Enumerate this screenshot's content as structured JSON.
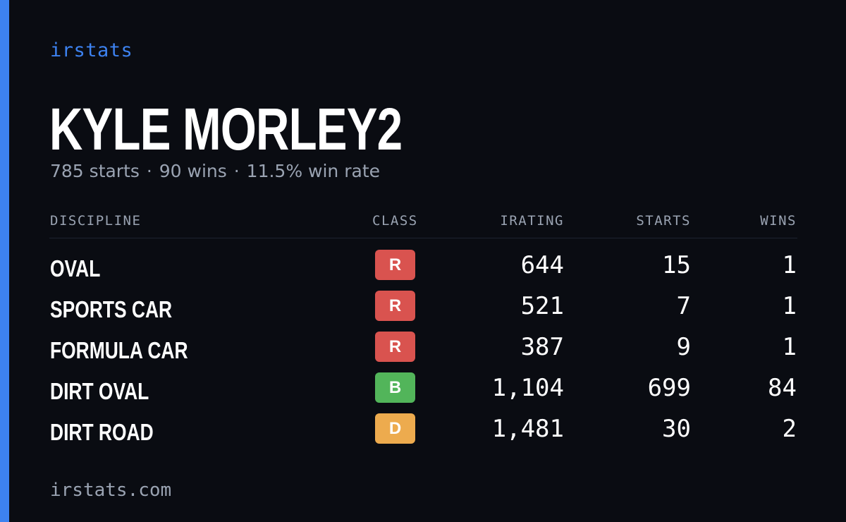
{
  "brand": "irstats",
  "driver_name": "KYLE MORLEY2",
  "summary": {
    "starts": "785 starts",
    "wins": "90 wins",
    "win_rate": "11.5% win rate",
    "separator": "·"
  },
  "colors": {
    "accent": "#3d82f0",
    "background": "#0a0c12",
    "class_R": "#d9534f",
    "class_B": "#52b55a",
    "class_D": "#edab4e"
  },
  "table": {
    "headers": {
      "discipline": "DISCIPLINE",
      "class": "CLASS",
      "irating": "IRATING",
      "starts": "STARTS",
      "wins": "WINS"
    },
    "rows": [
      {
        "discipline": "OVAL",
        "class": "R",
        "irating": "644",
        "starts": "15",
        "wins": "1"
      },
      {
        "discipline": "SPORTS CAR",
        "class": "R",
        "irating": "521",
        "starts": "7",
        "wins": "1"
      },
      {
        "discipline": "FORMULA CAR",
        "class": "R",
        "irating": "387",
        "starts": "9",
        "wins": "1"
      },
      {
        "discipline": "DIRT OVAL",
        "class": "B",
        "irating": "1,104",
        "starts": "699",
        "wins": "84"
      },
      {
        "discipline": "DIRT ROAD",
        "class": "D",
        "irating": "1,481",
        "starts": "30",
        "wins": "2"
      }
    ]
  },
  "footer": "irstats.com"
}
